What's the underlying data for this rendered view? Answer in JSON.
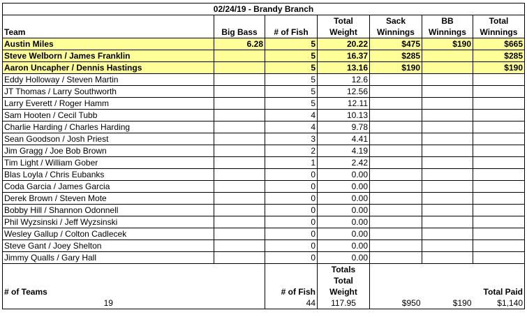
{
  "title": "02/24/19 - Brandy Branch",
  "headers": {
    "team": "Team",
    "big_bass": "Big Bass",
    "num_fish": "# of Fish",
    "total_weight_1": "Total",
    "total_weight_2": "Weight",
    "sack_1": "Sack",
    "sack_2": "Winnings",
    "bb_1": "BB",
    "bb_2": "Winnings",
    "tw_1": "Total",
    "tw_2": "Winnings"
  },
  "rows": [
    {
      "team": "Austin Miles",
      "big_bass": "6.28",
      "fish": "5",
      "weight": "20.22",
      "sack": "$475",
      "bb": "$190",
      "total": "$665"
    },
    {
      "team": "Steve Welborn / James Franklin",
      "big_bass": "",
      "fish": "5",
      "weight": "16.37",
      "sack": "$285",
      "bb": "",
      "total": "$285"
    },
    {
      "team": "Aaron Uncapher / Dennis Hastings",
      "big_bass": "",
      "fish": "5",
      "weight": "13.16",
      "sack": "$190",
      "bb": "",
      "total": "$190"
    },
    {
      "team": "Eddy Holloway / Steven Martin",
      "big_bass": "",
      "fish": "5",
      "weight": "12.6",
      "sack": "",
      "bb": "",
      "total": ""
    },
    {
      "team": "JT Thomas / Larry Southworth",
      "big_bass": "",
      "fish": "5",
      "weight": "12.56",
      "sack": "",
      "bb": "",
      "total": ""
    },
    {
      "team": "Larry Everett / Roger Hamm",
      "big_bass": "",
      "fish": "5",
      "weight": "12.11",
      "sack": "",
      "bb": "",
      "total": ""
    },
    {
      "team": "Sam Hooten / Cecil Tubb",
      "big_bass": "",
      "fish": "4",
      "weight": "10.13",
      "sack": "",
      "bb": "",
      "total": ""
    },
    {
      "team": "Charlie Harding / Charles Harding",
      "big_bass": "",
      "fish": "4",
      "weight": "9.78",
      "sack": "",
      "bb": "",
      "total": ""
    },
    {
      "team": "Sean Goodson / Josh Priest",
      "big_bass": "",
      "fish": "3",
      "weight": "4.41",
      "sack": "",
      "bb": "",
      "total": ""
    },
    {
      "team": "Jim Gragg / Joe Bob Brown",
      "big_bass": "",
      "fish": "2",
      "weight": "4.19",
      "sack": "",
      "bb": "",
      "total": ""
    },
    {
      "team": "Tim Light / William Gober",
      "big_bass": "",
      "fish": "1",
      "weight": "2.42",
      "sack": "",
      "bb": "",
      "total": ""
    },
    {
      "team": "Blas Loyla / Chris Eubanks",
      "big_bass": "",
      "fish": "0",
      "weight": "0.00",
      "sack": "",
      "bb": "",
      "total": ""
    },
    {
      "team": "Coda Garcia / James Garcia",
      "big_bass": "",
      "fish": "0",
      "weight": "0.00",
      "sack": "",
      "bb": "",
      "total": ""
    },
    {
      "team": "Derek Brown / Steven Mote",
      "big_bass": "",
      "fish": "0",
      "weight": "0.00",
      "sack": "",
      "bb": "",
      "total": ""
    },
    {
      "team": "Bobby Hill / Shannon Odonnell",
      "big_bass": "",
      "fish": "0",
      "weight": "0.00",
      "sack": "",
      "bb": "",
      "total": ""
    },
    {
      "team": "Phil Wyzsinski / Jeff Wyzsinski",
      "big_bass": "",
      "fish": "0",
      "weight": "0.00",
      "sack": "",
      "bb": "",
      "total": ""
    },
    {
      "team": "Wesley Gallup / Colton Cadlecek",
      "big_bass": "",
      "fish": "0",
      "weight": "0.00",
      "sack": "",
      "bb": "",
      "total": ""
    },
    {
      "team": "Steve Gant / Joey Shelton",
      "big_bass": "",
      "fish": "0",
      "weight": "0.00",
      "sack": "",
      "bb": "",
      "total": ""
    },
    {
      "team": "Jimmy Qualls / Gary Hall",
      "big_bass": "",
      "fish": "0",
      "weight": "0.00",
      "sack": "",
      "bb": "",
      "total": ""
    }
  ],
  "highlight_color": "#ffff99",
  "totals": {
    "label": "Totals",
    "weight_label_1": "Total",
    "weight_label_2": "Weight",
    "teams_label": "# of Teams",
    "fish_label": "# of Fish",
    "total_paid_label": "Total Paid",
    "teams": "19",
    "fish": "44",
    "weight": "117.95",
    "sack": "$950",
    "bb": "$190",
    "total_paid": "$1,140"
  }
}
